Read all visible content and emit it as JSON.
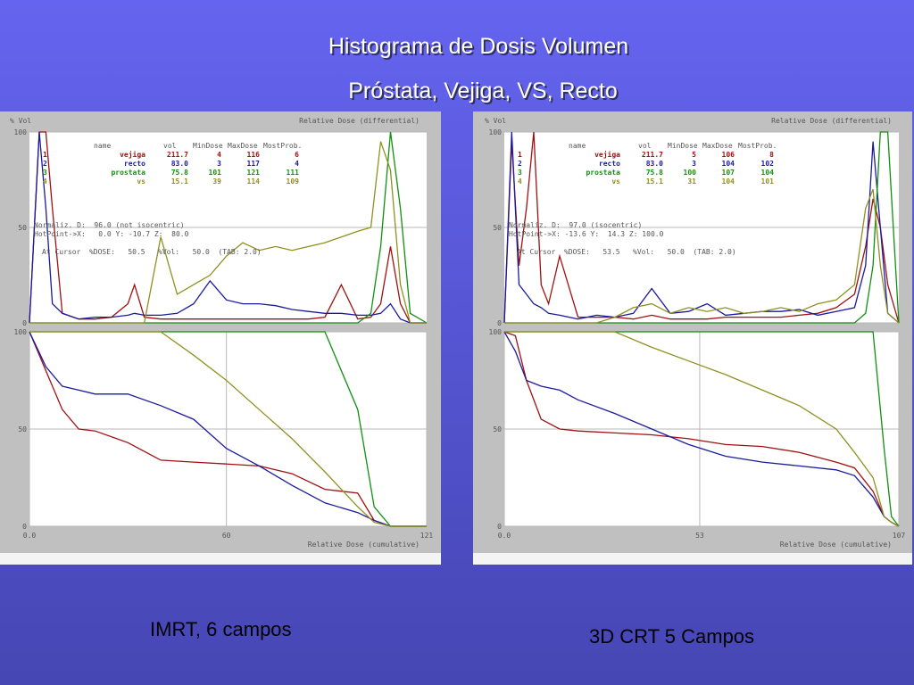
{
  "slide": {
    "title": "Histograma de Dosis Volumen",
    "subtitle": "Próstata, Vejiga, VS, Recto",
    "captions": [
      "IMRT, 6 campos",
      "3D CRT 5 Campos"
    ]
  },
  "chart_data": [
    {
      "type": "line",
      "y_label": "% Vol",
      "x_label": "Relative Dose (differential)",
      "xlim": [
        0,
        121
      ],
      "ylim": [
        0,
        100
      ],
      "yticks": [
        0,
        50,
        100
      ],
      "grid": true,
      "table": {
        "header": [
          "name",
          "vol",
          "MinDose",
          "MaxDose",
          "MostProb."
        ],
        "rows": [
          [
            "1",
            "vejiga",
            "211.7",
            "4",
            "116",
            "6"
          ],
          [
            "2",
            "recto",
            "83.0",
            "3",
            "117",
            "4"
          ],
          [
            "3",
            "prostata",
            "75.8",
            "101",
            "121",
            "111"
          ],
          [
            "4",
            "vs",
            "15.1",
            "39",
            "114",
            "109"
          ]
        ]
      },
      "annotations": [
        "Normaliz. D:  96.0 (not isocentric)",
        "HotPoint->X:   0.0 Y: -10.7 Z:  80.0",
        "At Cursor  %DOSE:   50.5   %Vol:   50.0  (TAB: 2.0)"
      ],
      "x": [
        0,
        3,
        5,
        7,
        10,
        15,
        20,
        25,
        30,
        32,
        35,
        40,
        45,
        50,
        55,
        60,
        65,
        70,
        75,
        80,
        85,
        90,
        95,
        100,
        104,
        107,
        110,
        113,
        116,
        121
      ],
      "series": [
        {
          "name": "vejiga",
          "color": "#a01010",
          "values": [
            0,
            100,
            100,
            60,
            5,
            2,
            2,
            3,
            10,
            20,
            3,
            2,
            2,
            2,
            2,
            2,
            2,
            2,
            2,
            2,
            2,
            3,
            20,
            2,
            3,
            10,
            40,
            10,
            0,
            0
          ]
        },
        {
          "name": "recto",
          "color": "#1a1aa0",
          "values": [
            0,
            100,
            60,
            10,
            5,
            2,
            3,
            3,
            4,
            5,
            4,
            4,
            5,
            10,
            22,
            12,
            10,
            10,
            9,
            7,
            6,
            5,
            5,
            4,
            4,
            5,
            10,
            2,
            0,
            0
          ]
        },
        {
          "name": "prostata",
          "color": "#109010",
          "values": [
            0,
            0,
            0,
            0,
            0,
            0,
            0,
            0,
            0,
            0,
            0,
            0,
            0,
            0,
            0,
            0,
            0,
            0,
            0,
            0,
            0,
            0,
            0,
            0,
            5,
            40,
            100,
            60,
            5,
            0
          ]
        },
        {
          "name": "vs",
          "color": "#909020",
          "values": [
            0,
            0,
            0,
            0,
            0,
            0,
            0,
            0,
            0,
            0,
            0,
            45,
            15,
            20,
            25,
            35,
            42,
            38,
            40,
            38,
            40,
            42,
            45,
            48,
            50,
            95,
            80,
            20,
            0,
            0
          ]
        }
      ]
    },
    {
      "type": "line",
      "x_label": "Relative Dose (cumulative)",
      "xlim": [
        0,
        121
      ],
      "ylim": [
        0,
        100
      ],
      "yticks": [
        0,
        50,
        100
      ],
      "xticks": [
        {
          "value": 0,
          "label": "0.0"
        },
        60,
        121
      ],
      "grid": true,
      "x": [
        0,
        5,
        10,
        15,
        20,
        30,
        40,
        50,
        60,
        70,
        80,
        90,
        100,
        105,
        110,
        121
      ],
      "series": [
        {
          "name": "vejiga",
          "color": "#a01010",
          "values": [
            100,
            80,
            60,
            50,
            49,
            43,
            34,
            33,
            32,
            31,
            27,
            19,
            17,
            3,
            0,
            0
          ]
        },
        {
          "name": "recto",
          "color": "#1a1aa0",
          "values": [
            100,
            82,
            72,
            70,
            68,
            68,
            62,
            55,
            40,
            31,
            21,
            12,
            7,
            3,
            0,
            0
          ]
        },
        {
          "name": "prostata",
          "color": "#109010",
          "values": [
            100,
            100,
            100,
            100,
            100,
            100,
            100,
            100,
            100,
            100,
            100,
            100,
            60,
            10,
            0,
            0
          ]
        },
        {
          "name": "vs",
          "color": "#909020",
          "values": [
            100,
            100,
            100,
            100,
            100,
            100,
            100,
            88,
            75,
            60,
            45,
            28,
            10,
            2,
            0,
            0
          ]
        }
      ]
    },
    {
      "type": "line",
      "y_label": "% Vol",
      "x_label": "Relative Dose (differential)",
      "xlim": [
        0,
        107
      ],
      "ylim": [
        0,
        100
      ],
      "yticks": [
        0,
        50,
        100
      ],
      "grid": true,
      "table": {
        "header": [
          "name",
          "vol",
          "MinDose",
          "MaxDose",
          "MostProb."
        ],
        "rows": [
          [
            "1",
            "vejiga",
            "211.7",
            "5",
            "106",
            "8"
          ],
          [
            "2",
            "recto",
            "83.0",
            "3",
            "104",
            "102"
          ],
          [
            "3",
            "prostata",
            "75.8",
            "100",
            "107",
            "104"
          ],
          [
            "4",
            "vs",
            "15.1",
            "31",
            "104",
            "101"
          ]
        ]
      },
      "annotations": [
        "Normaliz. D:  97.0 (isocentric)",
        "HotPoint->X: -13.6 Y:  14.3 Z: 100.0",
        "At Cursor  %DOSE:   53.5   %Vol:   50.0  (TAB: 2.0)"
      ],
      "x": [
        0,
        2,
        4,
        6,
        8,
        10,
        12,
        15,
        20,
        25,
        30,
        35,
        40,
        45,
        50,
        55,
        60,
        65,
        70,
        75,
        80,
        85,
        90,
        95,
        98,
        100,
        102,
        104,
        107
      ],
      "series": [
        {
          "name": "vejiga",
          "color": "#a01010",
          "values": [
            0,
            95,
            30,
            60,
            100,
            20,
            10,
            35,
            3,
            3,
            3,
            2,
            4,
            2,
            2,
            2,
            3,
            3,
            3,
            3,
            4,
            5,
            8,
            15,
            40,
            65,
            50,
            20,
            0
          ]
        },
        {
          "name": "recto",
          "color": "#1a1aa0",
          "values": [
            0,
            100,
            20,
            15,
            10,
            8,
            5,
            4,
            2,
            4,
            3,
            5,
            18,
            5,
            6,
            10,
            4,
            5,
            6,
            6,
            7,
            4,
            6,
            8,
            30,
            95,
            50,
            5,
            0
          ]
        },
        {
          "name": "prostata",
          "color": "#109010",
          "values": [
            0,
            0,
            0,
            0,
            0,
            0,
            0,
            0,
            0,
            0,
            0,
            0,
            0,
            0,
            0,
            0,
            0,
            0,
            0,
            0,
            0,
            0,
            0,
            0,
            5,
            30,
            100,
            100,
            0
          ]
        },
        {
          "name": "vs",
          "color": "#909020",
          "values": [
            0,
            0,
            0,
            0,
            0,
            0,
            0,
            0,
            0,
            0,
            3,
            8,
            10,
            5,
            8,
            6,
            8,
            5,
            6,
            8,
            6,
            10,
            12,
            20,
            60,
            70,
            30,
            5,
            0
          ]
        }
      ]
    },
    {
      "type": "line",
      "x_label": "Relative Dose (cumulative)",
      "xlim": [
        0,
        107
      ],
      "ylim": [
        0,
        100
      ],
      "yticks": [
        0,
        50,
        100
      ],
      "xticks": [
        {
          "value": 0,
          "label": "0.0"
        },
        53,
        107
      ],
      "grid": true,
      "x": [
        0,
        3,
        6,
        10,
        15,
        20,
        30,
        40,
        50,
        60,
        70,
        80,
        90,
        95,
        100,
        103,
        105,
        107
      ],
      "series": [
        {
          "name": "vejiga",
          "color": "#a01010",
          "values": [
            100,
            98,
            75,
            55,
            50,
            49,
            48,
            47,
            45,
            42,
            41,
            38,
            33,
            30,
            18,
            5,
            2,
            0
          ]
        },
        {
          "name": "recto",
          "color": "#1a1aa0",
          "values": [
            100,
            90,
            75,
            72,
            70,
            65,
            58,
            50,
            42,
            36,
            33,
            31,
            29,
            26,
            15,
            5,
            2,
            0
          ]
        },
        {
          "name": "prostata",
          "color": "#109010",
          "values": [
            100,
            100,
            100,
            100,
            100,
            100,
            100,
            100,
            100,
            100,
            100,
            100,
            100,
            100,
            100,
            40,
            5,
            0
          ]
        },
        {
          "name": "vs",
          "color": "#909020",
          "values": [
            100,
            100,
            100,
            100,
            100,
            100,
            100,
            92,
            85,
            78,
            70,
            62,
            50,
            38,
            25,
            5,
            2,
            0
          ]
        }
      ]
    }
  ]
}
